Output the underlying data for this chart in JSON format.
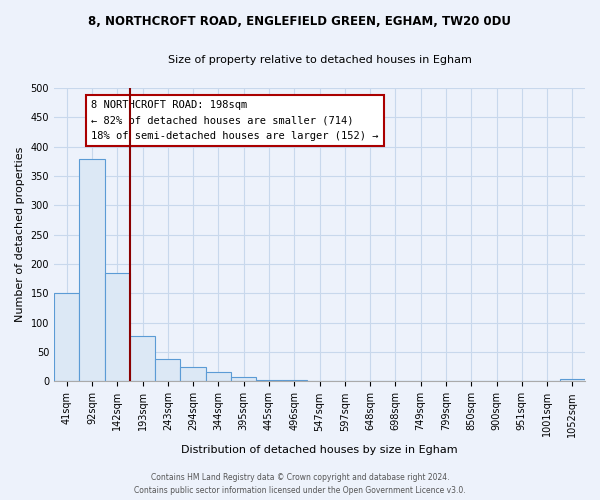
{
  "title": "8, NORTHCROFT ROAD, ENGLEFIELD GREEN, EGHAM, TW20 0DU",
  "subtitle": "Size of property relative to detached houses in Egham",
  "xlabel": "Distribution of detached houses by size in Egham",
  "ylabel": "Number of detached properties",
  "bar_labels": [
    "41sqm",
    "92sqm",
    "142sqm",
    "193sqm",
    "243sqm",
    "294sqm",
    "344sqm",
    "395sqm",
    "445sqm",
    "496sqm",
    "547sqm",
    "597sqm",
    "648sqm",
    "698sqm",
    "749sqm",
    "799sqm",
    "850sqm",
    "900sqm",
    "951sqm",
    "1001sqm",
    "1052sqm"
  ],
  "bar_values": [
    151,
    379,
    184,
    78,
    39,
    25,
    16,
    7,
    2,
    2,
    0,
    0,
    0,
    0,
    0,
    0,
    0,
    0,
    0,
    0,
    4
  ],
  "bar_fill_color": "#dce8f5",
  "bar_edge_color": "#5b9bd5",
  "ylim": [
    0,
    500
  ],
  "yticks": [
    0,
    50,
    100,
    150,
    200,
    250,
    300,
    350,
    400,
    450,
    500
  ],
  "annotation_title": "8 NORTHCROFT ROAD: 198sqm",
  "annotation_line1": "← 82% of detached houses are smaller (714)",
  "annotation_line2": "18% of semi-detached houses are larger (152) →",
  "box_fill_color": "#ffffff",
  "box_edge_color": "#aa0000",
  "vline_color": "#8b0000",
  "vline_x": 3.0,
  "footer_line1": "Contains HM Land Registry data © Crown copyright and database right 2024.",
  "footer_line2": "Contains public sector information licensed under the Open Government Licence v3.0.",
  "grid_color": "#c8d8ec",
  "background_color": "#edf2fb",
  "title_fontsize": 8.5,
  "subtitle_fontsize": 8,
  "axis_label_fontsize": 8,
  "tick_fontsize": 7,
  "footer_fontsize": 5.5,
  "ann_fontsize": 7.5
}
